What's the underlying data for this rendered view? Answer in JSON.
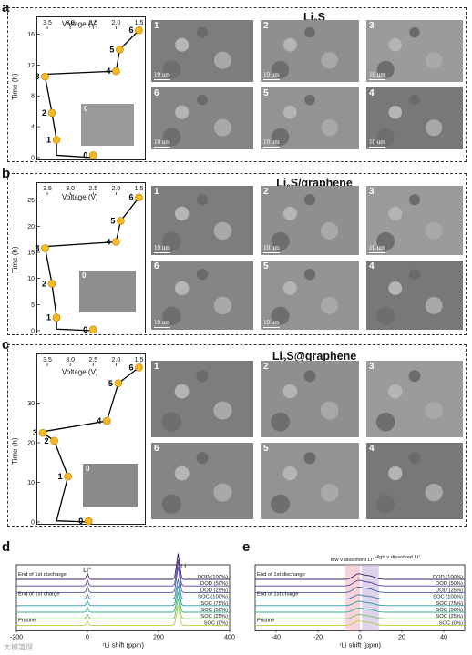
{
  "panels": [
    {
      "letter": "a",
      "title_main": "Li",
      "title_sub": "2",
      "title_rest": "S",
      "voltage_label": "Voltage (V)",
      "time_label": "Time (h)",
      "voltage_ticks": [
        "3.5",
        "3.0",
        "2.5",
        "2.0",
        "1.5"
      ],
      "time_ticks": [
        "16",
        "12",
        "8",
        "4",
        "0"
      ],
      "points": [
        {
          "n": "0",
          "v": 2.5,
          "t": 0.3
        },
        {
          "n": "1",
          "v": 3.3,
          "t": 2.3
        },
        {
          "n": "2",
          "v": 3.4,
          "t": 5.8
        },
        {
          "n": "3",
          "v": 3.55,
          "t": 10.5
        },
        {
          "n": "4",
          "v": 2.0,
          "t": 11.2
        },
        {
          "n": "5",
          "v": 1.92,
          "t": 14.0
        },
        {
          "n": "6",
          "v": 1.5,
          "t": 16.5
        }
      ],
      "inset_label": "0",
      "images": [
        {
          "label": "1",
          "scale": "10 um"
        },
        {
          "label": "2",
          "scale": "10 um"
        },
        {
          "label": "3",
          "scale": "10 um"
        },
        {
          "label": "6",
          "scale": "10 um"
        },
        {
          "label": "5",
          "scale": "10 um"
        },
        {
          "label": "4",
          "scale": "10 um"
        }
      ]
    },
    {
      "letter": "b",
      "title_main": "Li",
      "title_sub": "2",
      "title_rest": "S/graphene",
      "voltage_label": "Voltage (V)",
      "time_label": "Time (h)",
      "voltage_ticks": [
        "3.5",
        "3.0",
        "2.5",
        "2.0",
        "1.5"
      ],
      "time_ticks": [
        "25",
        "20",
        "15",
        "10",
        "5",
        "0"
      ],
      "points": [
        {
          "n": "0",
          "v": 2.5,
          "t": 0.2
        },
        {
          "n": "1",
          "v": 3.3,
          "t": 2.5
        },
        {
          "n": "2",
          "v": 3.4,
          "t": 9.0
        },
        {
          "n": "3",
          "v": 3.55,
          "t": 15.8
        },
        {
          "n": "4",
          "v": 2.0,
          "t": 17.0
        },
        {
          "n": "5",
          "v": 1.9,
          "t": 21.0
        },
        {
          "n": "6",
          "v": 1.5,
          "t": 25.5
        }
      ],
      "inset_label": "0",
      "images": [
        {
          "label": "1",
          "scale": "10 um"
        },
        {
          "label": "2",
          "scale": "10 um"
        },
        {
          "label": "3",
          "scale": "10 um"
        },
        {
          "label": "6",
          "scale": "10 um"
        },
        {
          "label": "5",
          "scale": "10 um"
        },
        {
          "label": "4",
          "scale": ""
        }
      ]
    },
    {
      "letter": "c",
      "title_main": "Li",
      "title_sub": "2",
      "title_rest": "S@graphene",
      "voltage_label": "Voltage (V)",
      "time_label": "Time (h)",
      "voltage_ticks": [
        "3.5",
        "3.0",
        "2.5",
        "2.0",
        "1.5"
      ],
      "time_ticks": [
        "30",
        "20",
        "10",
        "0"
      ],
      "points": [
        {
          "n": "0",
          "v": 2.6,
          "t": 0.2
        },
        {
          "n": "1",
          "v": 3.05,
          "t": 11.5
        },
        {
          "n": "2",
          "v": 3.35,
          "t": 20.5
        },
        {
          "n": "3",
          "v": 3.6,
          "t": 22.5
        },
        {
          "n": "4",
          "v": 2.2,
          "t": 25.5
        },
        {
          "n": "5",
          "v": 1.95,
          "t": 35.0
        },
        {
          "n": "6",
          "v": 1.5,
          "t": 39.0
        }
      ],
      "inset_label": "0",
      "images": [
        {
          "label": "1",
          "scale": ""
        },
        {
          "label": "2",
          "scale": ""
        },
        {
          "label": "3",
          "scale": ""
        },
        {
          "label": "6",
          "scale": ""
        },
        {
          "label": "5",
          "scale": ""
        },
        {
          "label": "4",
          "scale": ""
        }
      ]
    }
  ],
  "nmr_d": {
    "letter": "d",
    "peak_li_plus": "Li⁺",
    "peak_li": "Li",
    "left_labels": [
      "End of 1st discharge",
      "End of 1st charge",
      "Pristine"
    ],
    "right_labels": [
      "DOD (100%)",
      "DOD (50%)",
      "DOD (25%)",
      "SOC (100%)",
      "SOC (75%)",
      "SOC (50%)",
      "SOC (25%)",
      "SOC (0%)"
    ],
    "x_ticks": [
      "-200",
      "0",
      "200",
      "400"
    ],
    "x_label": "⁷Li shift (ppm)"
  },
  "nmr_e": {
    "letter": "e",
    "band_low": "low ν dissolved Li⁺",
    "band_high": "High ν dissolved Li⁺",
    "left_labels": [
      "End of 1st discharge",
      "End of 1st charge",
      "Pristine"
    ],
    "right_labels": [
      "DOD (100%)",
      "DOD (50%)",
      "DOD (25%)",
      "SOC (100%)",
      "SOC (75%)",
      "SOC (50%)",
      "SOC (25%)",
      "SOC (0%)"
    ],
    "x_ticks": [
      "-40",
      "-20",
      "0",
      "20",
      "40"
    ],
    "x_label": "⁷Li shift (ppm)"
  },
  "colors": {
    "marker": "#f5b921",
    "series": [
      "#3b1f6e",
      "#5a3a8f",
      "#4c5ea8",
      "#3a7aa6",
      "#2f96a0",
      "#35b08a",
      "#77c464",
      "#b3d143"
    ],
    "band_pink": "#f2b8c0",
    "band_purple": "#c6b8e0"
  },
  "watermark": "大模識理"
}
